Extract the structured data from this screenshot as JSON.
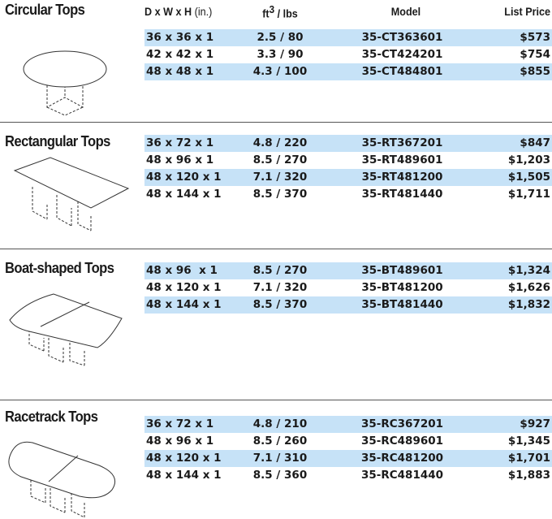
{
  "header": {
    "size": "D x W x H",
    "size_unit": "(in.)",
    "volume_unit": "ft",
    "volume_exp": "3",
    "weight_unit": "/ lbs",
    "model": "Model",
    "price": "List Price"
  },
  "sections": [
    {
      "title": "Circular Tops",
      "rows": [
        [
          "36 x 36 x 1",
          "2.5 / 80",
          "35-CT363601",
          "$573"
        ],
        [
          "42 x 42 x 1",
          "3.3 / 90",
          "35-CT424201",
          "$754"
        ],
        [
          "48 x 48 x 1",
          "4.3 / 100",
          "35-CT484801",
          "$855"
        ]
      ]
    },
    {
      "title": "Rectangular Tops",
      "rows": [
        [
          "36 x 72 x 1",
          "4.8 / 220",
          "35-RT367201",
          "$847"
        ],
        [
          "48 x 96 x 1",
          "8.5 / 270",
          "35-RT489601",
          "$1,203"
        ],
        [
          "48 x 120 x 1",
          "7.1 / 320",
          "35-RT481200",
          "$1,505"
        ],
        [
          "48 x 144 x 1",
          "8.5 / 370",
          "35-RT481440",
          "$1,711"
        ]
      ]
    },
    {
      "title": "Boat-shaped Tops",
      "rows": [
        [
          "48 x 96  x 1",
          "8.5 / 270",
          "35-BT489601",
          "$1,324"
        ],
        [
          "48 x 120 x 1",
          "7.1 / 320",
          "35-BT481200",
          "$1,626"
        ],
        [
          "48 x 144 x 1",
          "8.5 / 370",
          "35-BT481440",
          "$1,832"
        ]
      ]
    },
    {
      "title": "Racetrack Tops",
      "rows": [
        [
          "36 x 72 x 1",
          "4.8 / 210",
          "35-RC367201",
          "$927"
        ],
        [
          "48 x 96 x 1",
          "8.5 / 260",
          "35-RC489601",
          "$1,345"
        ],
        [
          "48 x 120 x 1",
          "7.1 / 310",
          "35-RC481200",
          "$1,701"
        ],
        [
          "48 x 144 x 1",
          "8.5 / 360",
          "35-RC481440",
          "$1,883"
        ]
      ]
    }
  ]
}
